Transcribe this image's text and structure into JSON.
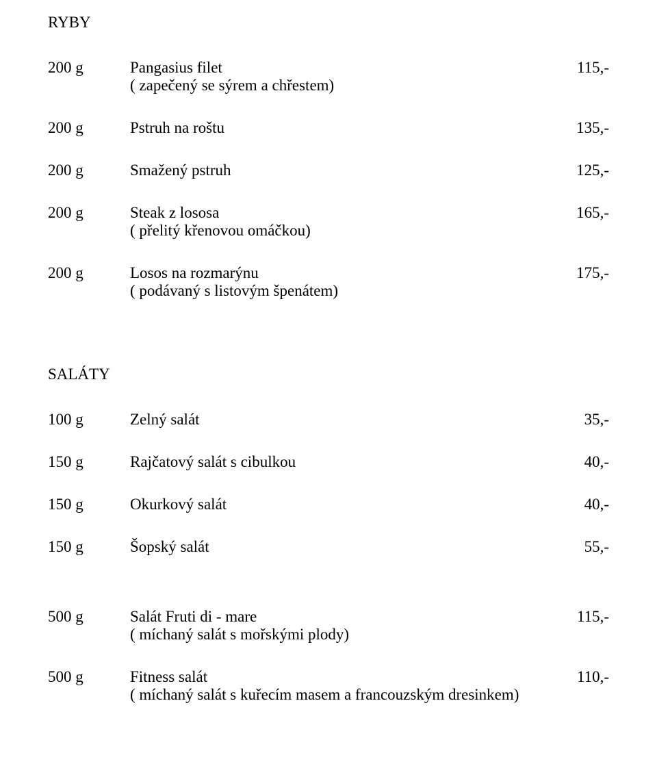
{
  "sections": {
    "ryby": {
      "heading": "RYBY",
      "items": [
        {
          "qty": "200 g",
          "name": "Pangasius filet",
          "sub": "( zapečený se sýrem a chřestem)",
          "price": "115,-"
        },
        {
          "qty": "200 g",
          "name": "Pstruh na roštu",
          "sub": "",
          "price": "135,-"
        },
        {
          "qty": "200 g",
          "name": "Smažený pstruh",
          "sub": "",
          "price": "125,-"
        },
        {
          "qty": "200 g",
          "name": "Steak z lososa",
          "sub": "( přelitý křenovou omáčkou)",
          "price": "165,-"
        },
        {
          "qty": "200 g",
          "name": "Losos na rozmarýnu",
          "sub": "( podávaný s listovým špenátem)",
          "price": "175,-"
        }
      ]
    },
    "salaty": {
      "heading": "SALÁTY",
      "items1": [
        {
          "qty": "100 g",
          "name": "Zelný salát",
          "sub": "",
          "price": "35,-"
        },
        {
          "qty": "150 g",
          "name": "Rajčatový salát s cibulkou",
          "sub": "",
          "price": "40,-"
        },
        {
          "qty": "150 g",
          "name": "Okurkový salát",
          "sub": "",
          "price": "40,-"
        },
        {
          "qty": "150 g",
          "name": "Šopský salát",
          "sub": "",
          "price": "55,-"
        }
      ],
      "items2": [
        {
          "qty": "500 g",
          "name": "Salát Fruti di - mare",
          "sub": "( míchaný salát s mořskými plody)",
          "price": "115,-"
        },
        {
          "qty": "500 g",
          "name": "Fitness salát",
          "sub": "( míchaný salát s kuřecím masem a francouzským dresinkem)",
          "price": "110,-"
        }
      ]
    }
  }
}
